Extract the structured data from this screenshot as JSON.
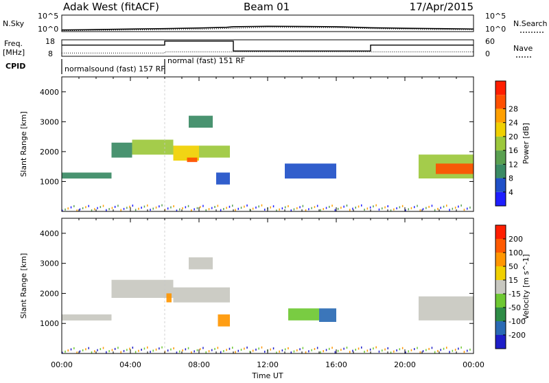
{
  "header": {
    "site": "Adak West (fitACF)",
    "beam": "Beam 01",
    "date": "17/Apr/2015"
  },
  "strip_labels": {
    "nsky": "N.Sky",
    "nsearch": "N.Search",
    "freq_top": "Freq.",
    "freq_unit": "[MHz]",
    "nave": "Nave",
    "cpid": "CPID",
    "nsky_tick_top": "10^5",
    "nsky_tick_bottom": "10^0",
    "nsearch_tick_top": "10^5",
    "nsearch_tick_bottom": "10^0",
    "freq_tick_top": "18",
    "freq_tick_bottom": "8",
    "nave_tick_top": "60",
    "nave_tick_bottom": "0",
    "cpid_segments": [
      {
        "label": "normalsound (fast) 157 RF",
        "start_h": 0,
        "end_h": 6
      },
      {
        "label": "normal (fast) 151 RF",
        "start_h": 6,
        "end_h": 24
      }
    ]
  },
  "colorbars": {
    "power": {
      "label": "Power [dB]",
      "ticks": [
        "4",
        "8",
        "12",
        "16",
        "20",
        "24",
        "28"
      ],
      "colors": [
        "#1e1eff",
        "#2050c8",
        "#3a8a64",
        "#5aa050",
        "#9cc83c",
        "#f0d000",
        "#ffa000",
        "#ff5000",
        "#ff1e00"
      ]
    },
    "velocity": {
      "label": "Velocity [m s^-1]",
      "ticks": [
        "200",
        "100",
        "50",
        "15",
        "-15",
        "-50",
        "-100",
        "-200"
      ],
      "colors": [
        "#1e1ec8",
        "#2a6ab4",
        "#2e8c46",
        "#6ec832",
        "#c8c8c0",
        "#f0d000",
        "#ff9600",
        "#ff5a00",
        "#ff1e00"
      ]
    }
  },
  "chart_data": [
    {
      "type": "line",
      "title": "N.Sky / N.Search",
      "x_range": [
        0,
        24
      ],
      "y_scale": "log",
      "y_range": [
        1,
        100000
      ],
      "series": [
        {
          "name": "N.Sky",
          "style": "solid",
          "x": [
            0,
            2,
            4,
            6,
            8,
            9.6,
            10,
            12,
            14,
            16,
            18,
            20,
            22,
            24
          ],
          "y": [
            3,
            4,
            6,
            8,
            12,
            20,
            30,
            40,
            35,
            30,
            15,
            10,
            8,
            6
          ]
        },
        {
          "name": "N.Search",
          "style": "dotted",
          "x": [
            0,
            4,
            8,
            12,
            16,
            18,
            20,
            24
          ],
          "y": [
            2,
            3,
            5,
            20,
            15,
            8,
            5,
            4
          ]
        }
      ]
    },
    {
      "type": "line",
      "title": "Freq. / Nave",
      "x_range": [
        0,
        24
      ],
      "series": [
        {
          "name": "Freq.",
          "unit": "MHz",
          "y_range": [
            8,
            18
          ],
          "style": "solid",
          "x": [
            0,
            6,
            6,
            10,
            10,
            18,
            18,
            24
          ],
          "y": [
            14.8,
            14.8,
            17.2,
            17.2,
            11.2,
            11.2,
            14.8,
            14.8
          ]
        },
        {
          "name": "Nave",
          "y_range": [
            0,
            60
          ],
          "style": "dotted",
          "x": [
            0,
            6,
            6,
            24
          ],
          "y": [
            12,
            12,
            16,
            16
          ]
        }
      ]
    },
    {
      "type": "heatmap",
      "title": "Power",
      "xlabel": "",
      "ylabel": "Slant Range [km]",
      "x_range": [
        0,
        24
      ],
      "y_range": [
        0,
        4500
      ],
      "y_ticks": [
        1000,
        2000,
        3000,
        4000
      ],
      "x_ticks": [
        "00:00",
        "04:00",
        "08:00",
        "12:00",
        "16:00",
        "20:00",
        "00:00"
      ],
      "colorbar": "Power [dB]",
      "regions": [
        {
          "t0": 0.0,
          "t1": 2.9,
          "r0": 1100,
          "r1": 1300,
          "level": 2
        },
        {
          "t0": 2.9,
          "t1": 4.1,
          "r0": 1800,
          "r1": 2300,
          "level": 2
        },
        {
          "t0": 4.1,
          "t1": 6.5,
          "r0": 1900,
          "r1": 2400,
          "level": 4
        },
        {
          "t0": 6.5,
          "t1": 8.0,
          "r0": 1700,
          "r1": 2200,
          "level": 5
        },
        {
          "t0": 7.3,
          "t1": 7.9,
          "r0": 1650,
          "r1": 1800,
          "level": 7
        },
        {
          "t0": 8.0,
          "t1": 9.8,
          "r0": 1800,
          "r1": 2200,
          "level": 4
        },
        {
          "t0": 7.4,
          "t1": 8.8,
          "r0": 2800,
          "r1": 3200,
          "level": 2
        },
        {
          "t0": 9.0,
          "t1": 9.8,
          "r0": 900,
          "r1": 1300,
          "level": 1
        },
        {
          "t0": 13.0,
          "t1": 16.0,
          "r0": 1100,
          "r1": 1600,
          "level": 1
        },
        {
          "t0": 20.8,
          "t1": 24.0,
          "r0": 1100,
          "r1": 1900,
          "level": 4
        },
        {
          "t0": 21.8,
          "t1": 24.0,
          "r0": 1250,
          "r1": 1600,
          "level": 7
        }
      ]
    },
    {
      "type": "heatmap",
      "title": "Velocity",
      "xlabel": "Time UT",
      "ylabel": "Slant Range [km]",
      "x_range": [
        0,
        24
      ],
      "y_range": [
        0,
        4500
      ],
      "y_ticks": [
        1000,
        2000,
        3000,
        4000
      ],
      "x_ticks": [
        "00:00",
        "04:00",
        "08:00",
        "12:00",
        "16:00",
        "20:00",
        "00:00"
      ],
      "colorbar": "Velocity [m s^-1]",
      "regions": [
        {
          "t0": 0.0,
          "t1": 2.9,
          "r0": 1100,
          "r1": 1300,
          "level": 4
        },
        {
          "t0": 2.9,
          "t1": 6.5,
          "r0": 1850,
          "r1": 2450,
          "level": 4
        },
        {
          "t0": 6.5,
          "t1": 9.8,
          "r0": 1700,
          "r1": 2200,
          "level": 4
        },
        {
          "t0": 7.4,
          "t1": 8.8,
          "r0": 2800,
          "r1": 3200,
          "level": 4
        },
        {
          "t0": 6.1,
          "t1": 6.4,
          "r0": 1700,
          "r1": 2000,
          "level": 6
        },
        {
          "t0": 9.1,
          "t1": 9.8,
          "r0": 900,
          "r1": 1300,
          "level": 6
        },
        {
          "t0": 13.2,
          "t1": 15.0,
          "r0": 1100,
          "r1": 1500,
          "level": 3
        },
        {
          "t0": 15.0,
          "t1": 16.0,
          "r0": 1050,
          "r1": 1500,
          "level": 1
        },
        {
          "t0": 20.8,
          "t1": 24.0,
          "r0": 1100,
          "r1": 1900,
          "level": 4
        }
      ]
    }
  ]
}
